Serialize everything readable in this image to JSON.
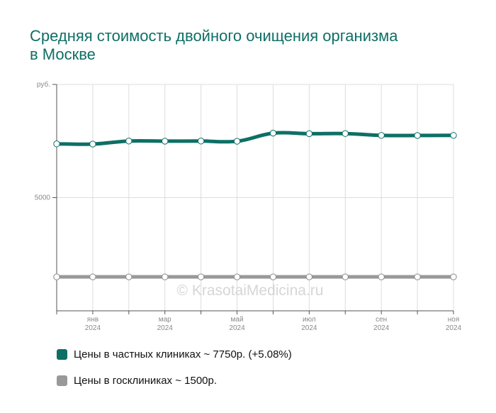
{
  "colors": {
    "title": "#0e6f66",
    "grid": "#dddddd",
    "axis": "#555555",
    "tick_text": "#8a8a8a",
    "marker_fill": "#ffffff",
    "watermark": "#d6d6d6"
  },
  "watermark": "© KrasotaiMedicina.ru",
  "chart_data": {
    "type": "line",
    "title": "Средняя стоимость двойного очищения организма в Москве",
    "y_unit_label": "руб.",
    "ylim": [
      0,
      10000
    ],
    "y_ticks": [
      {
        "value": 10000,
        "label": "руб."
      },
      {
        "value": 5000,
        "label": "5000"
      }
    ],
    "x": [
      "2023-12",
      "2024-01",
      "2024-02",
      "2024-03",
      "2024-04",
      "2024-05",
      "2024-06",
      "2024-07",
      "2024-08",
      "2024-09",
      "2024-10",
      "2024-11"
    ],
    "x_tick_labels": [
      {
        "x": "2024-01",
        "month": "янв",
        "year": "2024"
      },
      {
        "x": "2024-03",
        "month": "мар",
        "year": "2024"
      },
      {
        "x": "2024-05",
        "month": "май",
        "year": "2024"
      },
      {
        "x": "2024-07",
        "month": "июл",
        "year": "2024"
      },
      {
        "x": "2024-09",
        "month": "сен",
        "year": "2024"
      },
      {
        "x": "2024-11",
        "month": "ноя",
        "year": "2024"
      }
    ],
    "grid": true,
    "legend_position": "bottom-left",
    "series": [
      {
        "name": "Цены в частных клиниках",
        "legend_label": "Цены в частных клиниках ~ 7750р. (+5.08%)",
        "color": "#0e6f66",
        "values": [
          7375,
          7365,
          7500,
          7495,
          7500,
          7490,
          7850,
          7825,
          7830,
          7750,
          7745,
          7750
        ]
      },
      {
        "name": "Цены в госклиниках",
        "legend_label": "Цены в госклиниках ~ 1500р.",
        "color": "#999999",
        "values": [
          1500,
          1500,
          1500,
          1500,
          1500,
          1500,
          1500,
          1500,
          1500,
          1500,
          1500,
          1500
        ]
      }
    ]
  }
}
